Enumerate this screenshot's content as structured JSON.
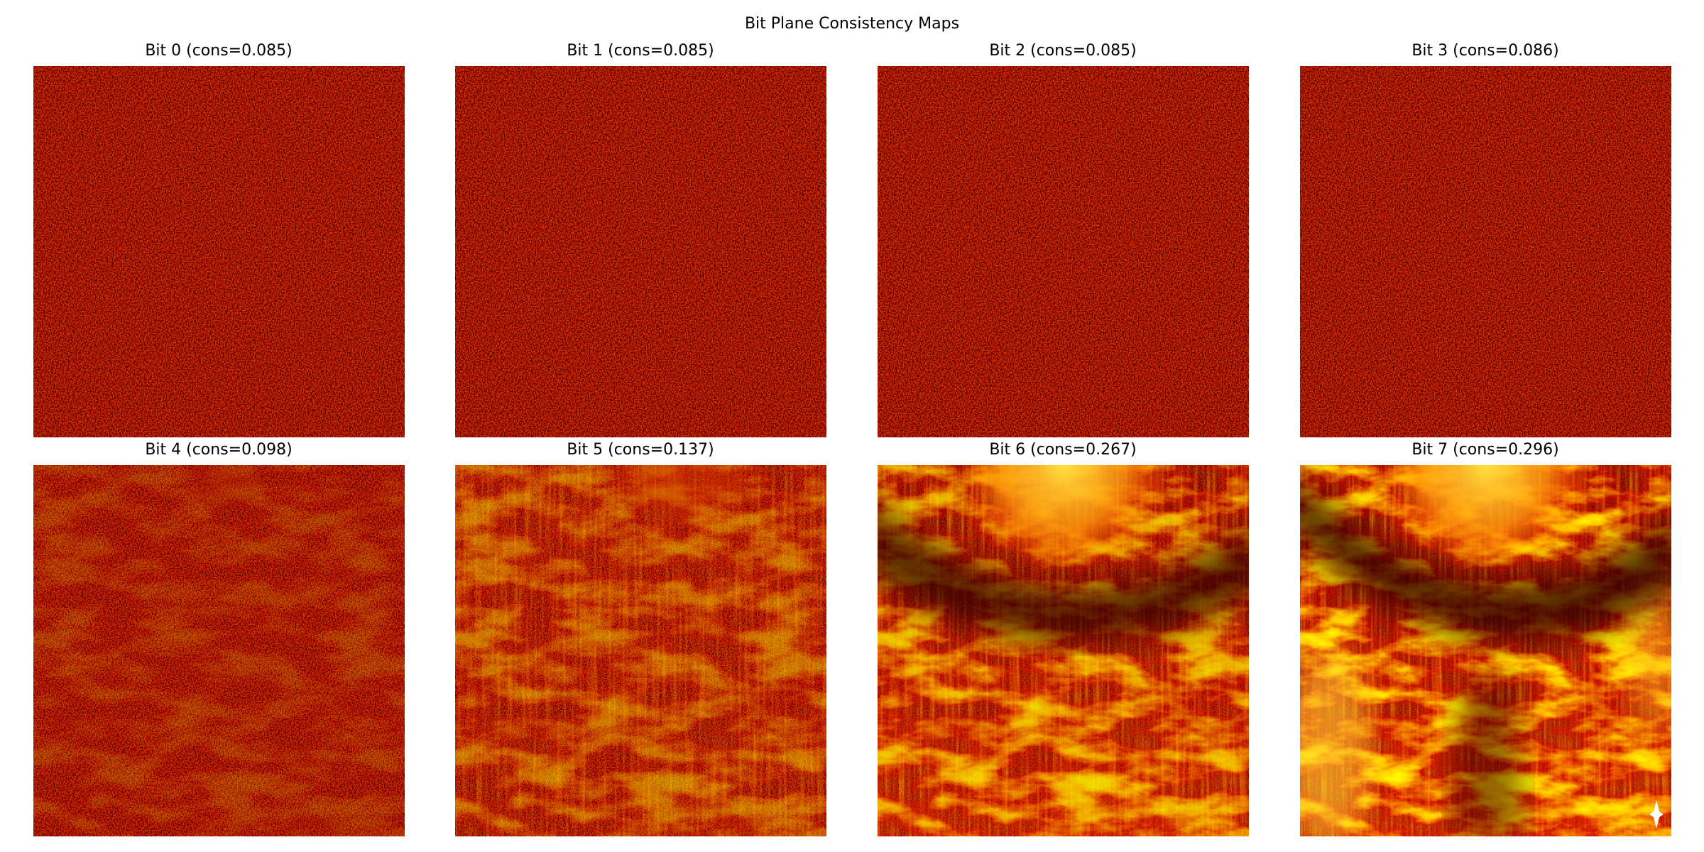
{
  "title": "Bit Plane Consistency Maps",
  "panels": [
    {
      "title": "Bit 0 (cons=0.085)"
    },
    {
      "title": "Bit 1 (cons=0.085)"
    },
    {
      "title": "Bit 2 (cons=0.085)"
    },
    {
      "title": "Bit 3 (cons=0.086)"
    },
    {
      "title": "Bit 4 (cons=0.098)"
    },
    {
      "title": "Bit 5 (cons=0.137)"
    },
    {
      "title": "Bit 6 (cons=0.267)"
    },
    {
      "title": "Bit 7 (cons=0.296)"
    }
  ]
}
